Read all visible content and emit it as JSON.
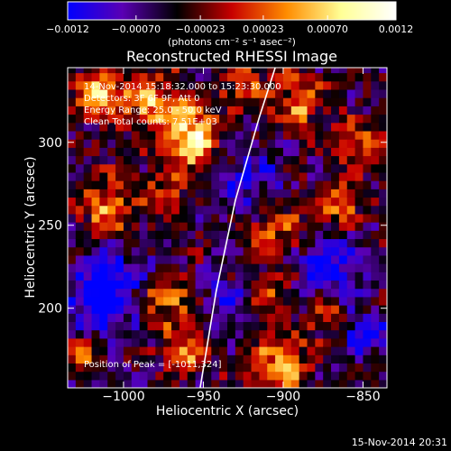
{
  "chart_data": {
    "type": "heatmap",
    "title": "Reconstructed RHESSI Image",
    "xlabel": "Heliocentric X (arcsec)",
    "ylabel": "Heliocentric Y (arcsec)",
    "xlim": [
      -1035,
      -835
    ],
    "ylim": [
      152,
      345
    ],
    "x_ticks": [
      {
        "value": -1000,
        "label": "−1000"
      },
      {
        "value": -950,
        "label": "−950"
      },
      {
        "value": -900,
        "label": "−900"
      },
      {
        "value": -850,
        "label": "−850"
      }
    ],
    "y_ticks": [
      {
        "value": 200,
        "label": "200"
      },
      {
        "value": 250,
        "label": "250"
      },
      {
        "value": 300,
        "label": "300"
      }
    ],
    "colorbar": {
      "vmin": -0.0012,
      "vmax": 0.0012,
      "ticks": [
        {
          "value": -0.0012,
          "label": "−0.0012"
        },
        {
          "value": -0.0007,
          "label": "−0.00070"
        },
        {
          "value": -0.00023,
          "label": "−0.00023"
        },
        {
          "value": 0.00023,
          "label": "0.00023"
        },
        {
          "value": 0.0007,
          "label": "0.00070"
        },
        {
          "value": 0.0012,
          "label": "0.0012"
        }
      ],
      "unit_label": "(photons cm⁻² s⁻¹ asec⁻²)",
      "colors": [
        "#0000ff",
        "#5a00b4",
        "#000000",
        "#c80000",
        "#ff8c00",
        "#ffff96",
        "#ffffff"
      ]
    },
    "annotations": [
      "14-Nov-2014 15:18:32.000 to 15:23:30.000",
      "Detectors: 3F 6F 9F, Att 0",
      "Energy Range: 25.0 - 50.0 keV",
      "Clean    Total counts: 7.51E+03",
      "Position of Peak = [-1011,324]"
    ],
    "limb_curve": [
      [
        -952,
        152
      ],
      [
        -942,
        210
      ],
      [
        -930,
        265
      ],
      [
        -915,
        315
      ],
      [
        -905,
        345
      ]
    ],
    "hot_spots": [
      {
        "x": -1015,
        "y": 330,
        "amp": 0.0011,
        "r": 10
      },
      {
        "x": -985,
        "y": 325,
        "amp": 0.0008,
        "r": 12
      },
      {
        "x": -960,
        "y": 310,
        "amp": 0.0009,
        "r": 12
      },
      {
        "x": -955,
        "y": 295,
        "amp": 0.0008,
        "r": 10
      },
      {
        "x": -1010,
        "y": 262,
        "amp": 0.0009,
        "r": 11
      },
      {
        "x": -925,
        "y": 335,
        "amp": 0.0006,
        "r": 10
      },
      {
        "x": -890,
        "y": 325,
        "amp": 0.0008,
        "r": 11
      },
      {
        "x": -855,
        "y": 300,
        "amp": 0.0006,
        "r": 9
      },
      {
        "x": -865,
        "y": 265,
        "amp": 0.0007,
        "r": 10
      },
      {
        "x": -905,
        "y": 250,
        "amp": 0.0007,
        "r": 12
      },
      {
        "x": -975,
        "y": 270,
        "amp": 0.0005,
        "r": 9
      },
      {
        "x": -975,
        "y": 205,
        "amp": 0.0008,
        "r": 11
      },
      {
        "x": -1025,
        "y": 175,
        "amp": 0.0006,
        "r": 9
      },
      {
        "x": -960,
        "y": 175,
        "amp": 0.0007,
        "r": 10
      },
      {
        "x": -900,
        "y": 165,
        "amp": 0.0011,
        "r": 11
      },
      {
        "x": -875,
        "y": 195,
        "amp": 0.0006,
        "r": 9
      },
      {
        "x": -910,
        "y": 210,
        "amp": 0.0005,
        "r": 9
      },
      {
        "x": -1000,
        "y": 235,
        "amp": 0.0004,
        "r": 9
      }
    ],
    "cold_spots": [
      {
        "x": -1015,
        "y": 205,
        "amp": -0.0009,
        "r": 16
      },
      {
        "x": -1000,
        "y": 225,
        "amp": -0.0007,
        "r": 12
      },
      {
        "x": -870,
        "y": 225,
        "amp": -0.0008,
        "r": 13
      },
      {
        "x": -920,
        "y": 275,
        "amp": -0.0006,
        "r": 14
      },
      {
        "x": -935,
        "y": 205,
        "amp": -0.0005,
        "r": 11
      },
      {
        "x": -850,
        "y": 185,
        "amp": -0.0006,
        "r": 10
      }
    ]
  },
  "timestamp": "15-Nov-2014 20:31"
}
